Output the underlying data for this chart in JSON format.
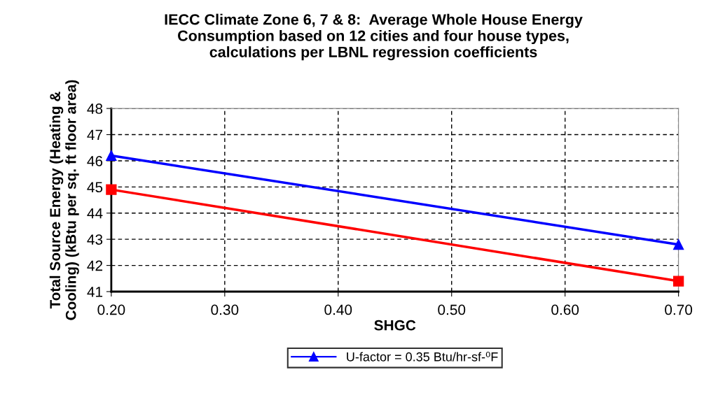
{
  "chart_data": {
    "type": "line",
    "title": "IECC Climate Zone 6, 7 & 8:  Average Whole House Energy\nConsumption based on 12 cities and four house types,\ncalculations per LBNL regression coefficients",
    "xlabel": "SHGC",
    "ylabel": "Total Source Energy (Heating &\nCooling) (kBtu per sq. ft floor area)",
    "x": [
      0.2,
      0.7
    ],
    "series": [
      {
        "name": "U-factor = 0.35 Btu/hr-sf-⁰F",
        "color": "#0000ff",
        "marker": "triangle",
        "values": [
          46.2,
          42.8
        ]
      },
      {
        "color": "#ff0000",
        "marker": "square",
        "values": [
          44.9,
          41.4
        ]
      }
    ],
    "xlim": [
      0.2,
      0.7
    ],
    "xticks": [
      {
        "value": 0.2,
        "label": "0.20"
      },
      {
        "value": 0.3,
        "label": "0.30"
      },
      {
        "value": 0.4,
        "label": "0.40"
      },
      {
        "value": 0.5,
        "label": "0.50"
      },
      {
        "value": 0.6,
        "label": "0.60"
      },
      {
        "value": 0.7,
        "label": "0.70"
      }
    ],
    "ylim": [
      41,
      48
    ],
    "yticks": [
      41,
      42,
      43,
      44,
      45,
      46,
      47,
      48
    ],
    "grid": true,
    "line_style": "solid",
    "legend": "bottom"
  }
}
